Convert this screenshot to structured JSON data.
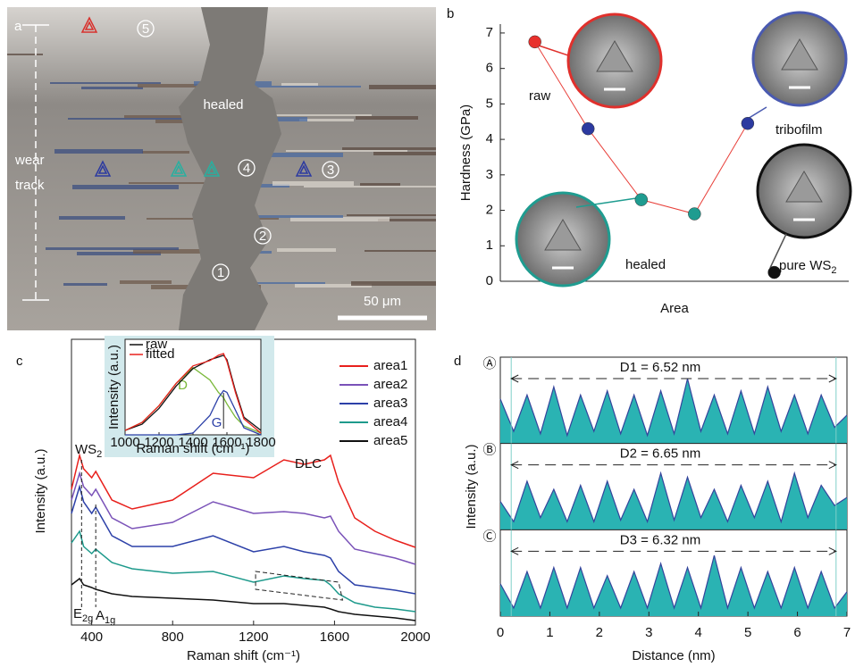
{
  "chart_data": [
    {
      "type": "image",
      "panel_label": "a",
      "labels": [
        "healed",
        "wear",
        "track"
      ],
      "markers": [
        "5",
        "4",
        "3",
        "2",
        "1"
      ],
      "scale_bar": "50 μm"
    },
    {
      "type": "scatter",
      "panel_label": "b",
      "ylabel": "Hardness (GPa)",
      "xlabel": "Area",
      "x": [
        1,
        2,
        3,
        4,
        5,
        5.5
      ],
      "values": [
        6.75,
        4.3,
        2.3,
        1.9,
        4.45,
        0.25
      ],
      "colors": [
        "#e8302c",
        "#2c3aa0",
        "#1f9c90",
        "#1f9c90",
        "#2c3aa0",
        "#111111"
      ],
      "line_color": "#e8403a",
      "xlim": [
        0.35,
        6.9
      ],
      "ylim": [
        0,
        7.25
      ],
      "yticks": [
        0,
        1,
        2,
        3,
        4,
        5,
        6,
        7
      ],
      "annotations": [
        {
          "text": "raw"
        },
        {
          "text": "tribofilm"
        },
        {
          "text": "healed"
        },
        {
          "text": "pure WS",
          "sub": "2"
        }
      ]
    },
    {
      "type": "line",
      "panel_label": "c",
      "xlabel": "Raman shift (cm⁻¹)",
      "ylabel": "Intensity (a.u.)",
      "xlim": [
        300,
        2000
      ],
      "xticks": [
        400,
        800,
        1200,
        1600,
        2000
      ],
      "ylim": [
        0,
        320
      ],
      "x": [
        300,
        340,
        360,
        400,
        420,
        500,
        600,
        800,
        1000,
        1200,
        1350,
        1450,
        1550,
        1580,
        1620,
        1700,
        1800,
        1900,
        2000
      ],
      "series": [
        {
          "name": "area1",
          "color": "#e8201c",
          "values": [
            152,
            190,
            175,
            165,
            172,
            140,
            130,
            140,
            170,
            165,
            185,
            180,
            185,
            190,
            160,
            120,
            105,
            95,
            87
          ]
        },
        {
          "name": "area2",
          "color": "#7a52b8",
          "values": [
            140,
            170,
            155,
            145,
            152,
            120,
            108,
            115,
            138,
            125,
            127,
            125,
            120,
            122,
            105,
            85,
            80,
            75,
            68
          ]
        },
        {
          "name": "area3",
          "color": "#2c40a8",
          "values": [
            125,
            155,
            138,
            125,
            132,
            100,
            88,
            88,
            100,
            82,
            88,
            82,
            78,
            75,
            60,
            45,
            42,
            39,
            35
          ]
        },
        {
          "name": "area4",
          "color": "#1e9a8c",
          "values": [
            92,
            105,
            88,
            80,
            85,
            70,
            63,
            58,
            60,
            48,
            55,
            52,
            50,
            45,
            35,
            25,
            20,
            18,
            15
          ]
        },
        {
          "name": "area5",
          "color": "#111111",
          "values": [
            45,
            52,
            45,
            42,
            40,
            35,
            32,
            30,
            28,
            24,
            24,
            22,
            20,
            18,
            15,
            12,
            10,
            8,
            5
          ]
        }
      ],
      "annotations": [
        {
          "text": "WS",
          "sub": "2"
        },
        {
          "text": "DLC"
        },
        {
          "text": "E",
          "sub": "2g"
        },
        {
          "text": "A",
          "sub": "1g"
        }
      ]
    },
    {
      "type": "line",
      "xlabel": "Raman shift (cm⁻¹)",
      "ylabel": "Intensity (a.u.)",
      "xlim": [
        1000,
        1800
      ],
      "xticks": [
        1000,
        1200,
        1400,
        1600,
        1800
      ],
      "ylim": [
        0,
        1
      ],
      "x": [
        1000,
        1100,
        1200,
        1300,
        1400,
        1500,
        1550,
        1580,
        1600,
        1650,
        1700,
        1800
      ],
      "series": [
        {
          "name": "raw",
          "color": "#111111",
          "values": [
            0.05,
            0.12,
            0.3,
            0.55,
            0.75,
            0.85,
            0.88,
            0.9,
            0.85,
            0.5,
            0.2,
            0.05
          ]
        },
        {
          "name": "fitted",
          "color": "#e8201c",
          "values": [
            0.05,
            0.14,
            0.33,
            0.58,
            0.78,
            0.84,
            0.9,
            0.92,
            0.83,
            0.48,
            0.18,
            0.02
          ]
        }
      ],
      "components": [
        {
          "name": "D",
          "color": "#7ab83a",
          "values": [
            0.05,
            0.14,
            0.33,
            0.58,
            0.76,
            0.62,
            0.48,
            0.42,
            0.35,
            0.2,
            0.1,
            0.02
          ]
        },
        {
          "name": "G",
          "color": "#2c40a8",
          "values": [
            0,
            0,
            0,
            0,
            0.02,
            0.22,
            0.42,
            0.5,
            0.48,
            0.28,
            0.08,
            0
          ]
        }
      ]
    },
    {
      "type": "area",
      "panel_label": "d",
      "xlabel": "Distance (nm)",
      "ylabel": "Intensity (a.u.)",
      "xlim": [
        0,
        7
      ],
      "xticks": [
        0,
        1,
        2,
        3,
        4,
        5,
        6,
        7
      ],
      "ylim": [
        0,
        1
      ],
      "color": "#2ab3b3",
      "line_color": "#34449c",
      "x": [
        0,
        0.27,
        0.54,
        0.81,
        1.08,
        1.35,
        1.62,
        1.89,
        2.16,
        2.43,
        2.7,
        2.97,
        3.24,
        3.51,
        3.78,
        4.05,
        4.32,
        4.59,
        4.86,
        5.13,
        5.4,
        5.67,
        5.94,
        6.21,
        6.48,
        6.75,
        7
      ],
      "panels": [
        {
          "label": "Ⓐ",
          "annotation": "D1 = 6.52 nm",
          "values": [
            0.55,
            0.15,
            0.6,
            0.12,
            0.7,
            0.1,
            0.6,
            0.15,
            0.65,
            0.12,
            0.6,
            0.1,
            0.65,
            0.12,
            0.8,
            0.15,
            0.6,
            0.12,
            0.65,
            0.12,
            0.7,
            0.15,
            0.6,
            0.12,
            0.6,
            0.2,
            0.35
          ]
        },
        {
          "label": "Ⓑ",
          "annotation": "D2 = 6.65 nm",
          "values": [
            0.35,
            0.1,
            0.6,
            0.15,
            0.5,
            0.1,
            0.55,
            0.1,
            0.6,
            0.12,
            0.5,
            0.1,
            0.7,
            0.12,
            0.65,
            0.15,
            0.5,
            0.1,
            0.55,
            0.15,
            0.6,
            0.1,
            0.7,
            0.15,
            0.55,
            0.3,
            0.4
          ]
        },
        {
          "label": "Ⓒ",
          "annotation": "D3 = 6.32 nm",
          "values": [
            0.4,
            0.1,
            0.55,
            0.1,
            0.6,
            0.1,
            0.6,
            0.1,
            0.5,
            0.1,
            0.55,
            0.1,
            0.65,
            0.1,
            0.6,
            0.1,
            0.75,
            0.1,
            0.6,
            0.1,
            0.55,
            0.1,
            0.6,
            0.1,
            0.55,
            0.1,
            0.3
          ]
        }
      ]
    }
  ]
}
